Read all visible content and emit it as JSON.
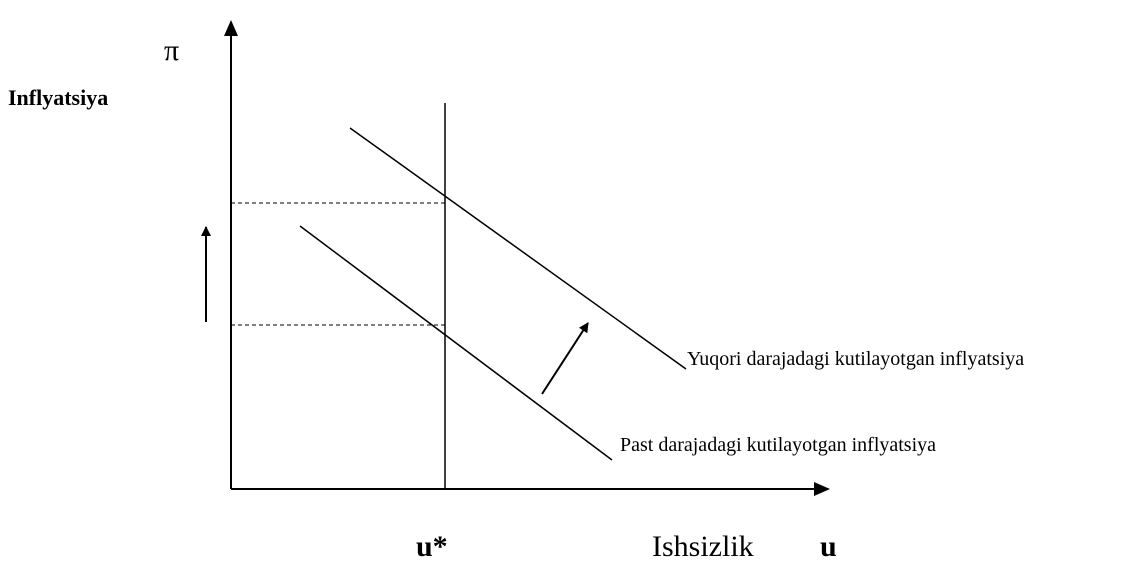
{
  "y_axis": {
    "symbol": "π",
    "label": "Inflyatsiya"
  },
  "x_axis": {
    "symbol": "u",
    "label": "Ishsizlik",
    "natural_rate": "u*"
  },
  "curves": [
    {
      "label": "Yuqori darajadagi kutilayotgan inflyatsiya"
    },
    {
      "label": "Past darajadagi kutilayotgan inflyatsiya"
    }
  ]
}
